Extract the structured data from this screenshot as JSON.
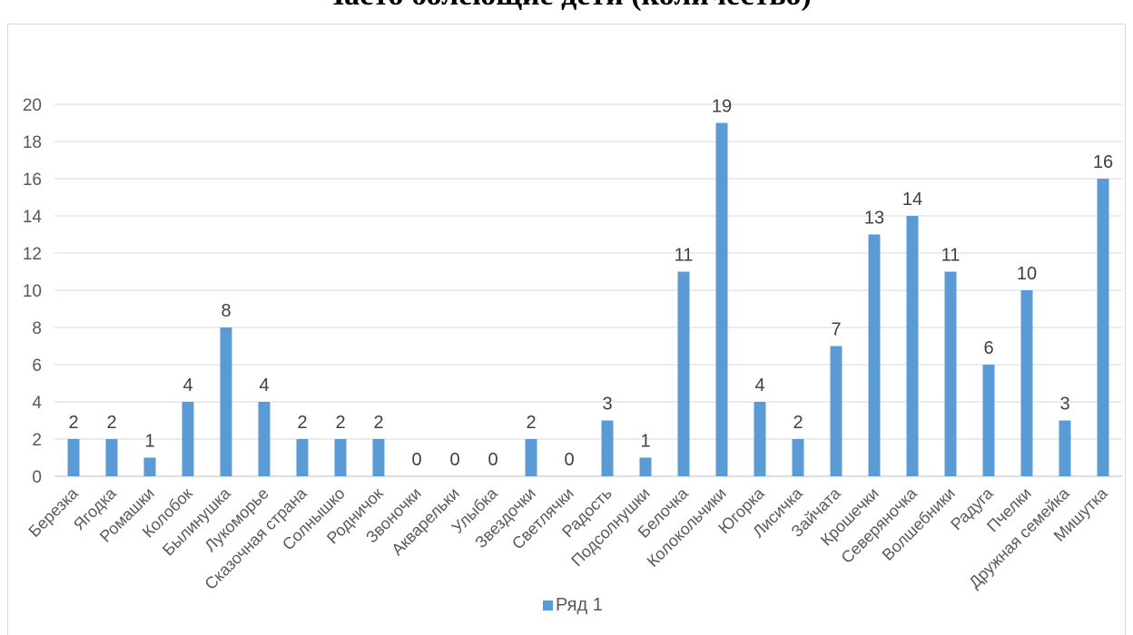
{
  "chart_data": {
    "type": "bar",
    "title": "Часто болеющие дети (количество)",
    "categories": [
      "Березка",
      "Ягодка",
      "Ромашки",
      "Колобок",
      "Былинушка",
      "Лукоморье",
      "Сказочная страна",
      "Солнышко",
      "Родничок",
      "Звоночки",
      "Акварельки",
      "Улыбка",
      "Звездочки",
      "Светлячки",
      "Радость",
      "Подсолнушки",
      "Белочка",
      "Колокольчики",
      "Югорка",
      "Лисичка",
      "Зайчата",
      "Крошечки",
      "Северяночка",
      "Волшебники",
      "Радуга",
      "Пчелки",
      "Дружная семейка",
      "Мишутка"
    ],
    "series": [
      {
        "name": "Ряд 1",
        "values": [
          2,
          2,
          1,
          4,
          8,
          4,
          2,
          2,
          2,
          0,
          0,
          0,
          2,
          0,
          3,
          1,
          11,
          19,
          4,
          2,
          7,
          13,
          14,
          11,
          6,
          10,
          3,
          16
        ]
      }
    ],
    "ylim": [
      0,
      20
    ],
    "yticks": [
      0,
      2,
      4,
      6,
      8,
      10,
      12,
      14,
      16,
      18,
      20
    ],
    "grid": true,
    "legend": "bottom",
    "data_labels": true,
    "colors": {
      "bar": "#5b9bd5",
      "grid": "#d9d9d9",
      "axis": "#bfbfbf"
    }
  }
}
